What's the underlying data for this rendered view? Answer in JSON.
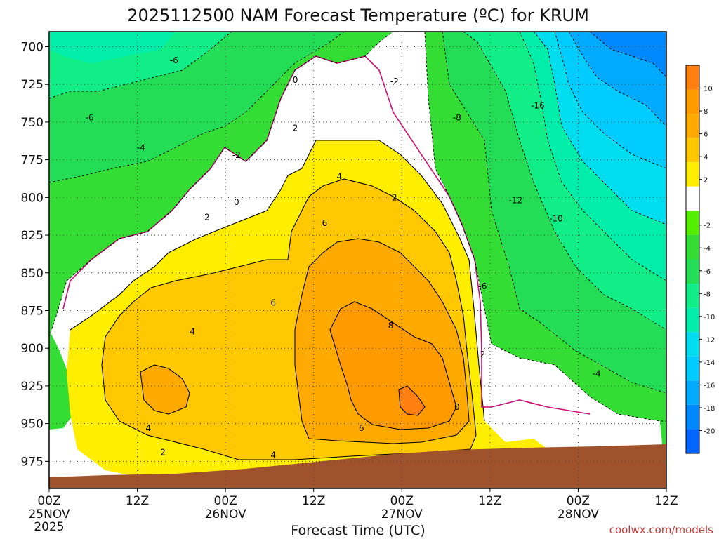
{
  "chart_data": {
    "type": "heatmap",
    "title": "2025112500 NAM Forecast Temperature (ºC) for KRUM",
    "xlabel": "Forecast Time (UTC)",
    "ylabel": "",
    "credit": "coolwx.com/models",
    "credit_color": "#cc3333",
    "x_range_hours": [
      0,
      84
    ],
    "y_range_hPa": [
      690,
      993
    ],
    "y_ticks": [
      "700",
      "725",
      "750",
      "775",
      "800",
      "825",
      "850",
      "875",
      "900",
      "925",
      "950",
      "975"
    ],
    "x_ticks": [
      {
        "label": "00Z",
        "date": "25NOV",
        "year": "2025"
      },
      {
        "label": "12Z",
        "date": "",
        "year": ""
      },
      {
        "label": "00Z",
        "date": "26NOV",
        "year": ""
      },
      {
        "label": "12Z",
        "date": "",
        "year": ""
      },
      {
        "label": "00Z",
        "date": "27NOV",
        "year": ""
      },
      {
        "label": "12Z",
        "date": "",
        "year": ""
      },
      {
        "label": "00Z",
        "date": "28NOV",
        "year": ""
      },
      {
        "label": "12Z",
        "date": "",
        "year": ""
      }
    ],
    "grid": true,
    "colorbar": {
      "placement": "right",
      "labels": [
        "10",
        "8",
        "6",
        "4",
        "2",
        "-2",
        "-4",
        "-6",
        "-8",
        "-10",
        "-12",
        "-14",
        "-16",
        "-18",
        "-20"
      ],
      "bands": [
        {
          "min": 10,
          "max": 12,
          "color": "#ff7f11"
        },
        {
          "min": 8,
          "max": 10,
          "color": "#ff9a00"
        },
        {
          "min": 6,
          "max": 8,
          "color": "#ffaa00"
        },
        {
          "min": 4,
          "max": 6,
          "color": "#ffc800"
        },
        {
          "min": 2,
          "max": 4,
          "color": "#ffee00"
        },
        {
          "min": -2,
          "max": 2,
          "color": "#ffffff"
        },
        {
          "min": -4,
          "max": -2,
          "color": "#55ee00"
        },
        {
          "min": -6,
          "max": -4,
          "color": "#33dd33"
        },
        {
          "min": -8,
          "max": -6,
          "color": "#22dd55"
        },
        {
          "min": -10,
          "max": -8,
          "color": "#11ee88"
        },
        {
          "min": -12,
          "max": -10,
          "color": "#00eeaa"
        },
        {
          "min": -14,
          "max": -12,
          "color": "#00ddee"
        },
        {
          "min": -16,
          "max": -14,
          "color": "#00ccff"
        },
        {
          "min": -18,
          "max": -16,
          "color": "#00aaff"
        },
        {
          "min": -20,
          "max": -18,
          "color": "#0088ff"
        },
        {
          "min": -22,
          "max": -20,
          "color": "#0066ff"
        }
      ]
    },
    "contour_labels": [
      {
        "text": "-6",
        "t": 17,
        "p": 709
      },
      {
        "text": "-6",
        "t": 5.5,
        "p": 747
      },
      {
        "text": "-4",
        "t": 12.5,
        "p": 767
      },
      {
        "text": "0",
        "t": 33.5,
        "p": 722
      },
      {
        "text": "-2",
        "t": 47,
        "p": 723
      },
      {
        "text": "-2",
        "t": 25.5,
        "p": 772
      },
      {
        "text": "2",
        "t": 33.5,
        "p": 754
      },
      {
        "text": "0",
        "t": 25.5,
        "p": 803
      },
      {
        "text": "2",
        "t": 21.5,
        "p": 813
      },
      {
        "text": "4",
        "t": 39.5,
        "p": 786
      },
      {
        "text": "2",
        "t": 47,
        "p": 800
      },
      {
        "text": "6",
        "t": 37.5,
        "p": 817
      },
      {
        "text": "6",
        "t": 30.5,
        "p": 870
      },
      {
        "text": "4",
        "t": 19.5,
        "p": 889
      },
      {
        "text": "8",
        "t": 46.5,
        "p": 885
      },
      {
        "text": "4",
        "t": 13.5,
        "p": 953
      },
      {
        "text": "2",
        "t": 15.5,
        "p": 969
      },
      {
        "text": "6",
        "t": 42.5,
        "p": 953
      },
      {
        "text": "4",
        "t": 30.5,
        "p": 971
      },
      {
        "text": "0",
        "t": 55.5,
        "p": 939
      },
      {
        "text": "-8",
        "t": 55.5,
        "p": 747
      },
      {
        "text": "-12",
        "t": 63.5,
        "p": 802
      },
      {
        "text": "-10",
        "t": 69,
        "p": 814
      },
      {
        "text": "-16",
        "t": 66.5,
        "p": 739
      },
      {
        "text": "-6",
        "t": 59,
        "p": 859
      },
      {
        "text": "2",
        "t": 59,
        "p": 904
      },
      {
        "text": "-4",
        "t": 74.5,
        "p": 917
      }
    ],
    "surface": {
      "color": "#a0522d"
    }
  }
}
